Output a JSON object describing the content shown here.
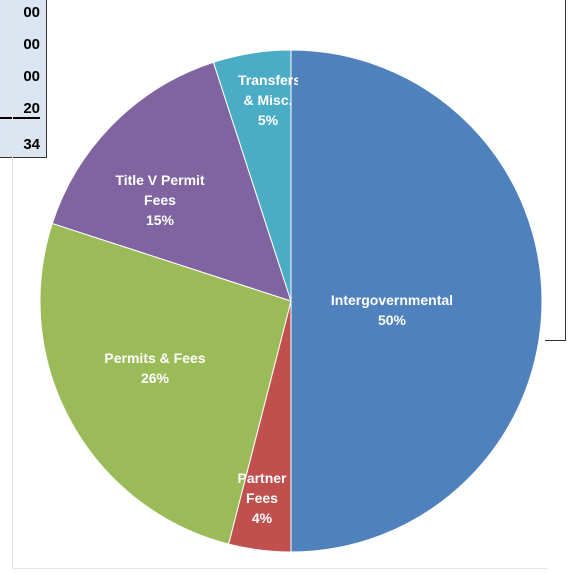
{
  "table": {
    "rows": [
      "00",
      "00",
      "00",
      "20",
      "34"
    ]
  },
  "chart_data": {
    "type": "pie",
    "categories": [
      "Intergovernmental",
      "Partner Fees",
      "Permits & Fees",
      "Title V Permit Fees",
      "Transfers & Misc."
    ],
    "values": [
      50,
      4,
      26,
      15,
      5
    ],
    "value_labels": [
      "50%",
      "4%",
      "26%",
      "15%",
      "5%"
    ],
    "colors": [
      "#4f81bd",
      "#c0504d",
      "#9bbb59",
      "#8064a2",
      "#4bacc6"
    ]
  }
}
